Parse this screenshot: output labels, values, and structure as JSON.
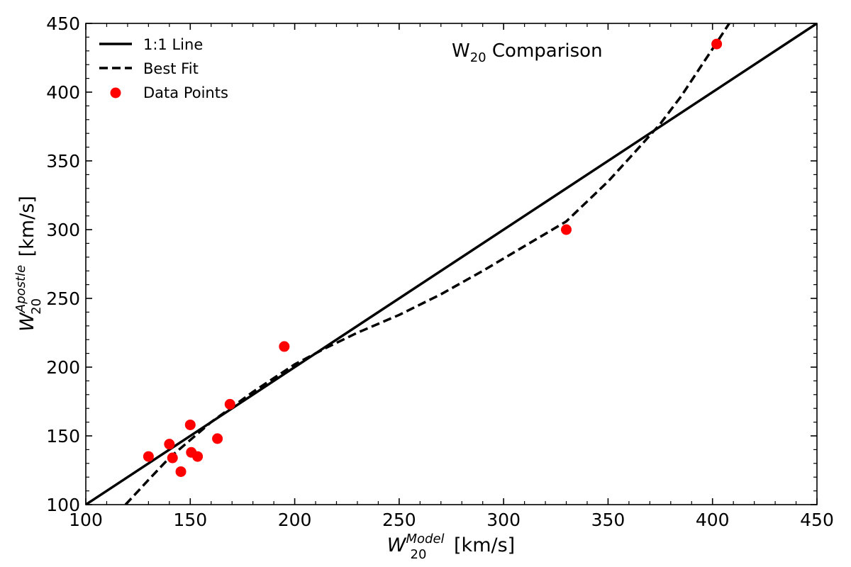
{
  "chart_data": {
    "type": "scatter",
    "title": {
      "prefix": "W",
      "sub": "20",
      "suffix": " Comparison"
    },
    "xlabel": {
      "main": "W",
      "sub": "20",
      "sup": "Model",
      "unit": " [km/s]"
    },
    "ylabel": {
      "main": "W",
      "sub": "20",
      "sup": "Apostle",
      "unit": " [km/s]"
    },
    "xlim": [
      100,
      450
    ],
    "ylim": [
      100,
      450
    ],
    "xticks": [
      100,
      150,
      200,
      250,
      300,
      350,
      400,
      450
    ],
    "yticks": [
      100,
      150,
      200,
      250,
      300,
      350,
      400,
      450
    ],
    "minor_step": 10,
    "grid": false,
    "legend": {
      "location": "top-left",
      "entries": [
        {
          "label": "1:1 Line",
          "style": "solid-line"
        },
        {
          "label": "Best Fit",
          "style": "dashed-line"
        },
        {
          "label": "Data Points",
          "style": "marker"
        }
      ]
    },
    "series": [
      {
        "name": "1:1 Line",
        "kind": "line",
        "color": "#000000",
        "x": [
          100,
          450
        ],
        "y": [
          100,
          450
        ]
      },
      {
        "name": "Best Fit",
        "kind": "dashed-line",
        "color": "#000000",
        "x": [
          119,
          130,
          140,
          150,
          160,
          170,
          180,
          190,
          200,
          215,
          230,
          250,
          270,
          290,
          310,
          330,
          350,
          365,
          375,
          385,
          395,
          402,
          408
        ],
        "y": [
          100,
          118,
          134,
          147,
          160,
          171,
          182,
          192,
          202,
          214,
          225,
          238,
          253,
          270,
          288,
          306,
          335,
          360,
          377,
          397,
          420,
          436,
          450
        ]
      },
      {
        "name": "Data Points",
        "kind": "scatter",
        "color": "#ff0000",
        "x": [
          130,
          140,
          141.5,
          145.5,
          150,
          150.5,
          153.5,
          163,
          169,
          195,
          330,
          402
        ],
        "y": [
          135,
          144,
          134,
          124,
          158,
          138,
          135,
          148,
          173,
          215,
          300,
          435
        ]
      }
    ]
  }
}
